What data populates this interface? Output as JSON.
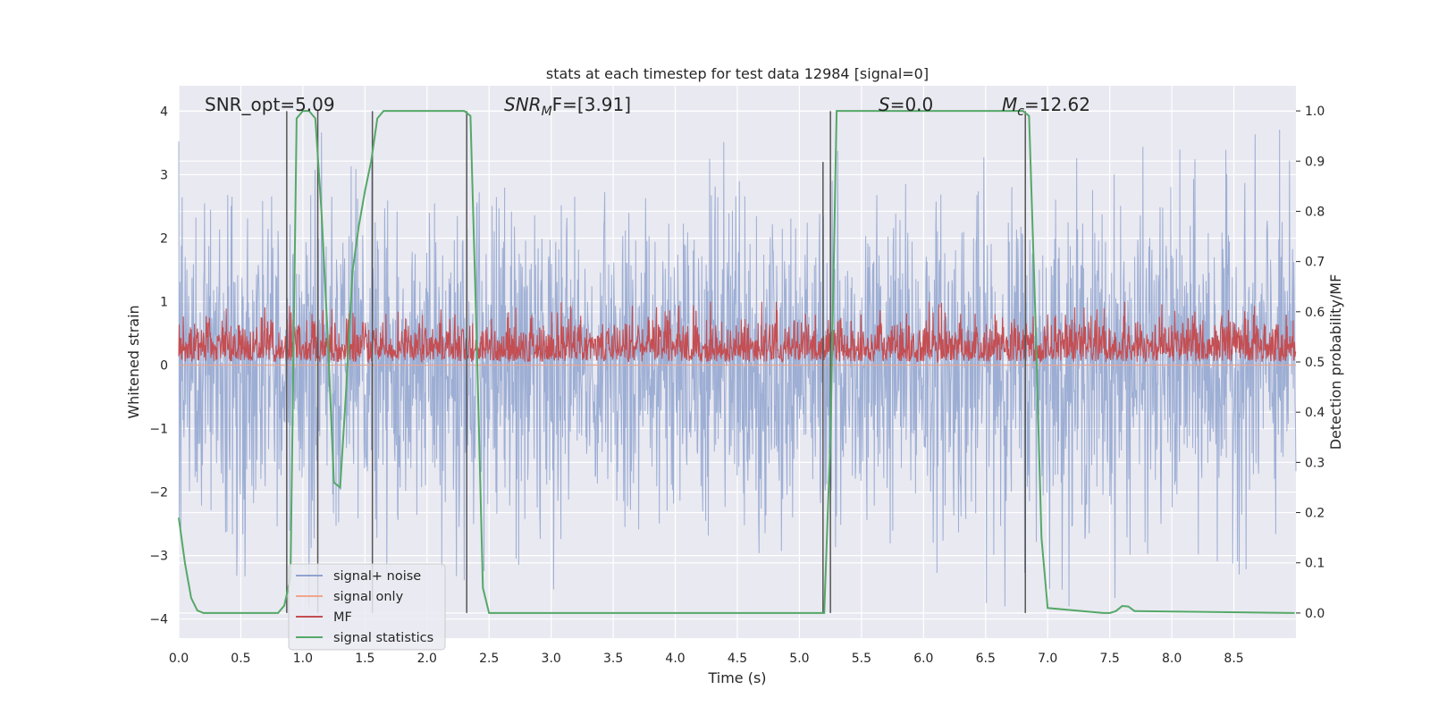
{
  "chart_data": {
    "type": "line",
    "title": "stats at each timestep for test data 12984 [signal=0]",
    "xlabel": "Time (s)",
    "ylabel": "Whitened strain",
    "ylabel_right": "Detection probability/MF",
    "xlim": [
      0.0,
      9.0
    ],
    "ylim": [
      -4.3,
      4.4
    ],
    "ylim_right": [
      -0.05,
      1.05
    ],
    "xticks": [
      "0.0",
      "0.5",
      "1.0",
      "1.5",
      "2.0",
      "2.5",
      "3.0",
      "3.5",
      "4.0",
      "4.5",
      "5.0",
      "5.5",
      "6.0",
      "6.5",
      "7.0",
      "7.5",
      "8.0",
      "8.5"
    ],
    "yticks": [
      "−4",
      "−3",
      "−2",
      "−1",
      "0",
      "1",
      "2",
      "3",
      "4"
    ],
    "yticks_right": [
      "0.0",
      "0.1",
      "0.2",
      "0.3",
      "0.4",
      "0.5",
      "0.6",
      "0.7",
      "0.8",
      "0.9",
      "1.0"
    ],
    "annotations": {
      "snr_opt": "SNR_opt=5.09",
      "snr_mf_prefix": "SNR",
      "snr_mf_sub": "M",
      "snr_mf_suffix": "F=[3.91]",
      "s_var": "S",
      "s_value": "=0.0",
      "mc_var": "M",
      "mc_sub": "c",
      "mc_value": "=12.62"
    },
    "legend": {
      "placement": "lower-left",
      "entries": [
        {
          "label": "signal+ noise",
          "color": "#8fa3cf"
        },
        {
          "label": "signal only",
          "color": "#f0a58a"
        },
        {
          "label": "MF",
          "color": "#c44e52"
        },
        {
          "label": "signal statistics",
          "color": "#55a868"
        }
      ]
    },
    "series": [
      {
        "name": "signal+ noise",
        "axis": "left",
        "color": "#8fa3cf",
        "kind": "dense noise",
        "approx_range": [
          -3.8,
          4.0
        ],
        "mean": 0.0
      },
      {
        "name": "signal only",
        "axis": "left",
        "color": "#f0a58a",
        "kind": "flat",
        "value": 0.0
      },
      {
        "name": "MF",
        "axis": "right",
        "color": "#c44e52",
        "kind": "dense noise",
        "approx_range": [
          0.5,
          0.62
        ]
      },
      {
        "name": "signal statistics",
        "axis": "right",
        "color": "#55a868",
        "x": [
          0.0,
          0.05,
          0.1,
          0.15,
          0.2,
          0.8,
          0.85,
          0.9,
          0.95,
          1.0,
          1.05,
          1.1,
          1.15,
          1.2,
          1.25,
          1.3,
          1.35,
          1.4,
          1.45,
          1.5,
          1.55,
          1.6,
          1.65,
          1.7,
          2.25,
          2.3,
          2.35,
          2.4,
          2.45,
          2.5,
          5.2,
          5.25,
          5.3,
          6.8,
          6.85,
          6.9,
          6.95,
          7.0,
          7.45,
          7.5,
          7.55,
          7.6,
          7.65,
          7.7,
          8.99
        ],
        "y": [
          0.19,
          0.1,
          0.03,
          0.005,
          0.0,
          0.0,
          0.015,
          0.07,
          0.985,
          1.0,
          1.0,
          0.985,
          0.8,
          0.55,
          0.26,
          0.25,
          0.45,
          0.68,
          0.77,
          0.84,
          0.9,
          0.985,
          1.0,
          1.0,
          1.0,
          1.0,
          0.99,
          0.55,
          0.05,
          0.0,
          0.0,
          0.35,
          1.0,
          1.0,
          0.99,
          0.6,
          0.15,
          0.01,
          0.0,
          0.0,
          0.004,
          0.014,
          0.013,
          0.004,
          0.0
        ]
      },
      {
        "name": "vertical markers",
        "axis": "left",
        "color": "#555555",
        "kind": "vertical lines",
        "x": [
          0.87,
          1.12,
          1.56,
          2.32,
          5.19,
          5.25,
          6.82
        ],
        "top": [
          4.0,
          4.0,
          4.0,
          4.0,
          3.2,
          4.0,
          4.0
        ]
      }
    ]
  }
}
